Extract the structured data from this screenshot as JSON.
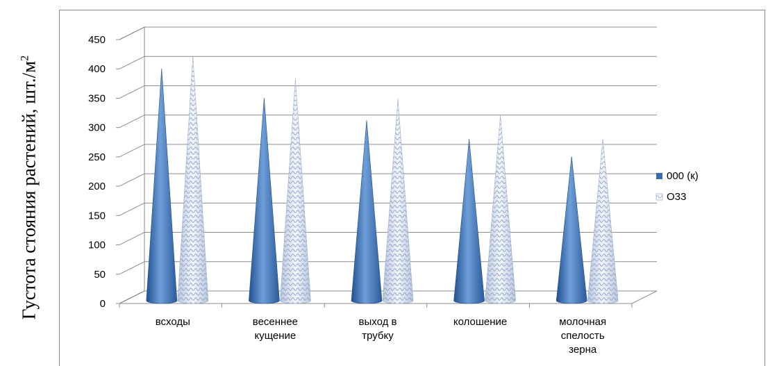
{
  "chart_data": {
    "type": "bar",
    "ylabel": "Густота стояния растений, шт./м",
    "ylabel_sup": "2",
    "ylim": [
      0,
      450
    ],
    "yticks": [
      0,
      50,
      100,
      150,
      200,
      250,
      300,
      350,
      400,
      450
    ],
    "categories": [
      [
        "всходы"
      ],
      [
        "весеннее",
        "кущение"
      ],
      [
        "выход в",
        "трубку"
      ],
      [
        "колошение"
      ],
      [
        "молочная",
        "спелость",
        "зерна"
      ]
    ],
    "series": [
      {
        "name": "000 (к)",
        "values": [
          390,
          340,
          302,
          270,
          240
        ],
        "color": "#3a6cb0"
      },
      {
        "name": "О33",
        "values": [
          412,
          372,
          338,
          310,
          270
        ],
        "color": "#c9d4e8"
      }
    ],
    "grid": true,
    "legend": "right",
    "mark_shape": "cone"
  }
}
